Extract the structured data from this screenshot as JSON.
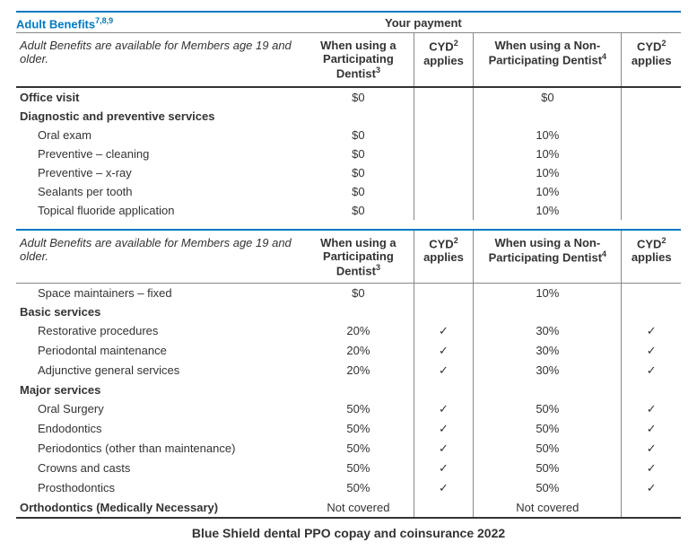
{
  "header": {
    "title": "Adult Benefits",
    "title_sup": "7,8,9",
    "your_payment": "Your payment"
  },
  "colhead": {
    "desc": "Adult Benefits are available for Members age 19 and older.",
    "participating": "When using a Participating Dentist",
    "participating_sup": "3",
    "cyd": "CYD",
    "cyd_sup": "2",
    "cyd_sub": "applies",
    "nonparticipating": "When using a Non-Participating Dentist",
    "nonparticipating_sup": "4"
  },
  "section1": {
    "rows": [
      {
        "type": "cat",
        "label": "Office visit",
        "p": "$0",
        "c1": "",
        "np": "$0",
        "c2": ""
      },
      {
        "type": "cat",
        "label": "Diagnostic and preventive services",
        "p": "",
        "c1": "",
        "np": "",
        "c2": ""
      },
      {
        "type": "item",
        "label": "Oral exam",
        "p": "$0",
        "c1": "",
        "np": "10%",
        "c2": ""
      },
      {
        "type": "item",
        "label": "Preventive – cleaning",
        "p": "$0",
        "c1": "",
        "np": "10%",
        "c2": ""
      },
      {
        "type": "item",
        "label": "Preventive – x-ray",
        "p": "$0",
        "c1": "",
        "np": "10%",
        "c2": ""
      },
      {
        "type": "item",
        "label": "Sealants per tooth",
        "p": "$0",
        "c1": "",
        "np": "10%",
        "c2": ""
      },
      {
        "type": "item",
        "label": "Topical fluoride application",
        "p": "$0",
        "c1": "",
        "np": "10%",
        "c2": ""
      }
    ]
  },
  "section2": {
    "rows": [
      {
        "type": "item",
        "label": "Space maintainers – fixed",
        "p": "$0",
        "c1": "",
        "np": "10%",
        "c2": ""
      },
      {
        "type": "cat",
        "label": "Basic services",
        "p": "",
        "c1": "",
        "np": "",
        "c2": ""
      },
      {
        "type": "item",
        "label": "Restorative procedures",
        "p": "20%",
        "c1": "✓",
        "np": "30%",
        "c2": "✓"
      },
      {
        "type": "item",
        "label": "Periodontal maintenance",
        "p": "20%",
        "c1": "✓",
        "np": "30%",
        "c2": "✓"
      },
      {
        "type": "item",
        "label": "Adjunctive general services",
        "p": "20%",
        "c1": "✓",
        "np": "30%",
        "c2": "✓"
      },
      {
        "type": "cat",
        "label": "Major services",
        "p": "",
        "c1": "",
        "np": "",
        "c2": ""
      },
      {
        "type": "item",
        "label": "Oral Surgery",
        "p": "50%",
        "c1": "✓",
        "np": "50%",
        "c2": "✓"
      },
      {
        "type": "item",
        "label": "Endodontics",
        "p": "50%",
        "c1": "✓",
        "np": "50%",
        "c2": "✓"
      },
      {
        "type": "item",
        "label": "Periodontics (other than maintenance)",
        "p": "50%",
        "c1": "✓",
        "np": "50%",
        "c2": "✓"
      },
      {
        "type": "item",
        "label": "Crowns and casts",
        "p": "50%",
        "c1": "✓",
        "np": "50%",
        "c2": "✓"
      },
      {
        "type": "item",
        "label": "Prosthodontics",
        "p": "50%",
        "c1": "✓",
        "np": "50%",
        "c2": "✓"
      },
      {
        "type": "cat",
        "label": "Orthodontics (Medically Necessary)",
        "p": "Not covered",
        "c1": "",
        "np": "Not covered",
        "c2": ""
      }
    ]
  },
  "caption": "Blue Shield dental PPO copay and coinsurance 2022"
}
